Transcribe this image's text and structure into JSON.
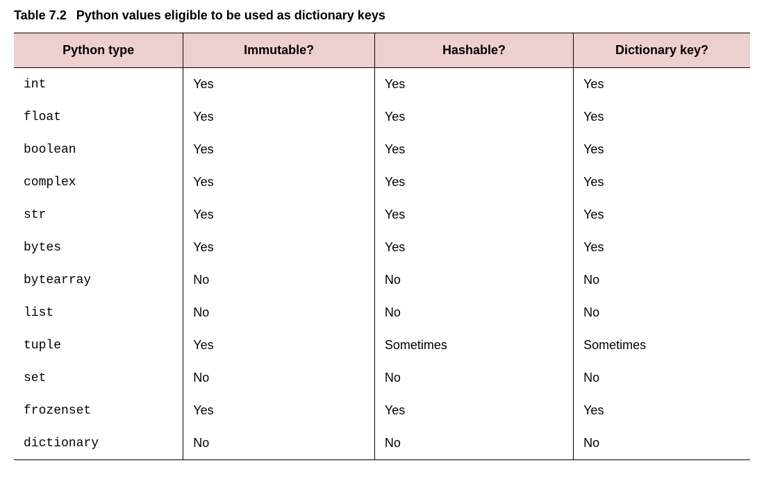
{
  "caption": {
    "label": "Table 7.2",
    "title": "Python values eligible to be used as dictionary keys"
  },
  "table": {
    "header_bg": "#eecfcf",
    "border_color": "#000000",
    "columns": [
      {
        "label": "Python type",
        "align": "center",
        "width_pct": 23
      },
      {
        "label": "Immutable?",
        "align": "center",
        "width_pct": 26
      },
      {
        "label": "Hashable?",
        "align": "center",
        "width_pct": 27
      },
      {
        "label": "Dictionary key?",
        "align": "center",
        "width_pct": 24
      }
    ],
    "type_column_font": "monospace",
    "body_font": "sans-serif",
    "fontsize_header": 18,
    "fontsize_body": 18,
    "fontsize_caption": 18,
    "rows": [
      {
        "type": "int",
        "immutable": "Yes",
        "hashable": "Yes",
        "dictkey": "Yes"
      },
      {
        "type": "float",
        "immutable": "Yes",
        "hashable": "Yes",
        "dictkey": "Yes"
      },
      {
        "type": "boolean",
        "immutable": "Yes",
        "hashable": "Yes",
        "dictkey": "Yes"
      },
      {
        "type": "complex",
        "immutable": "Yes",
        "hashable": "Yes",
        "dictkey": "Yes"
      },
      {
        "type": "str",
        "immutable": "Yes",
        "hashable": "Yes",
        "dictkey": "Yes"
      },
      {
        "type": "bytes",
        "immutable": "Yes",
        "hashable": "Yes",
        "dictkey": "Yes"
      },
      {
        "type": "bytearray",
        "immutable": "No",
        "hashable": "No",
        "dictkey": "No"
      },
      {
        "type": "list",
        "immutable": "No",
        "hashable": "No",
        "dictkey": "No"
      },
      {
        "type": "tuple",
        "immutable": "Yes",
        "hashable": "Sometimes",
        "dictkey": "Sometimes"
      },
      {
        "type": "set",
        "immutable": "No",
        "hashable": "No",
        "dictkey": "No"
      },
      {
        "type": "frozenset",
        "immutable": "Yes",
        "hashable": "Yes",
        "dictkey": "Yes"
      },
      {
        "type": "dictionary",
        "immutable": "No",
        "hashable": "No",
        "dictkey": "No"
      }
    ]
  }
}
